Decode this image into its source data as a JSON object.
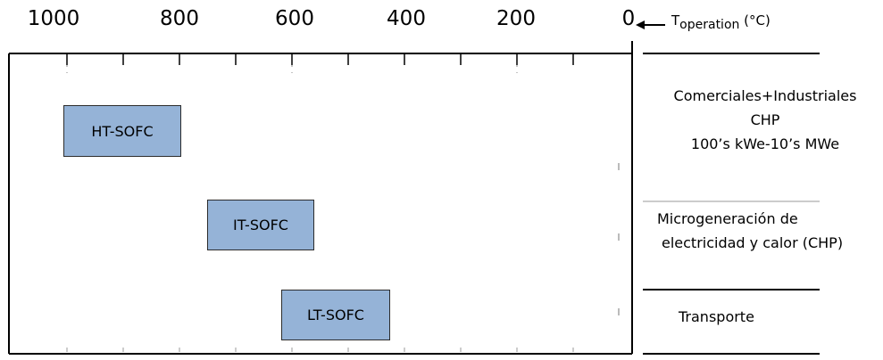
{
  "axis": {
    "ticks": [
      "1000",
      "800",
      "600",
      "400",
      "200",
      "0"
    ],
    "temperature_label_main": "T",
    "temperature_label_sub": "operation",
    "temperature_label_unit": " (°C)"
  },
  "cells": [
    {
      "label": "HT-SOFC"
    },
    {
      "label": "IT-SOFC"
    },
    {
      "label": "LT-SOFC"
    }
  ],
  "applications": [
    {
      "lines": [
        "Comerciales+Industriales",
        "CHP",
        "100’s kWe-10’s MWe"
      ]
    },
    {
      "lines": [
        "Microgeneración de",
        "electricidad y calor (CHP)"
      ]
    },
    {
      "lines": [
        "Transporte"
      ]
    }
  ]
}
